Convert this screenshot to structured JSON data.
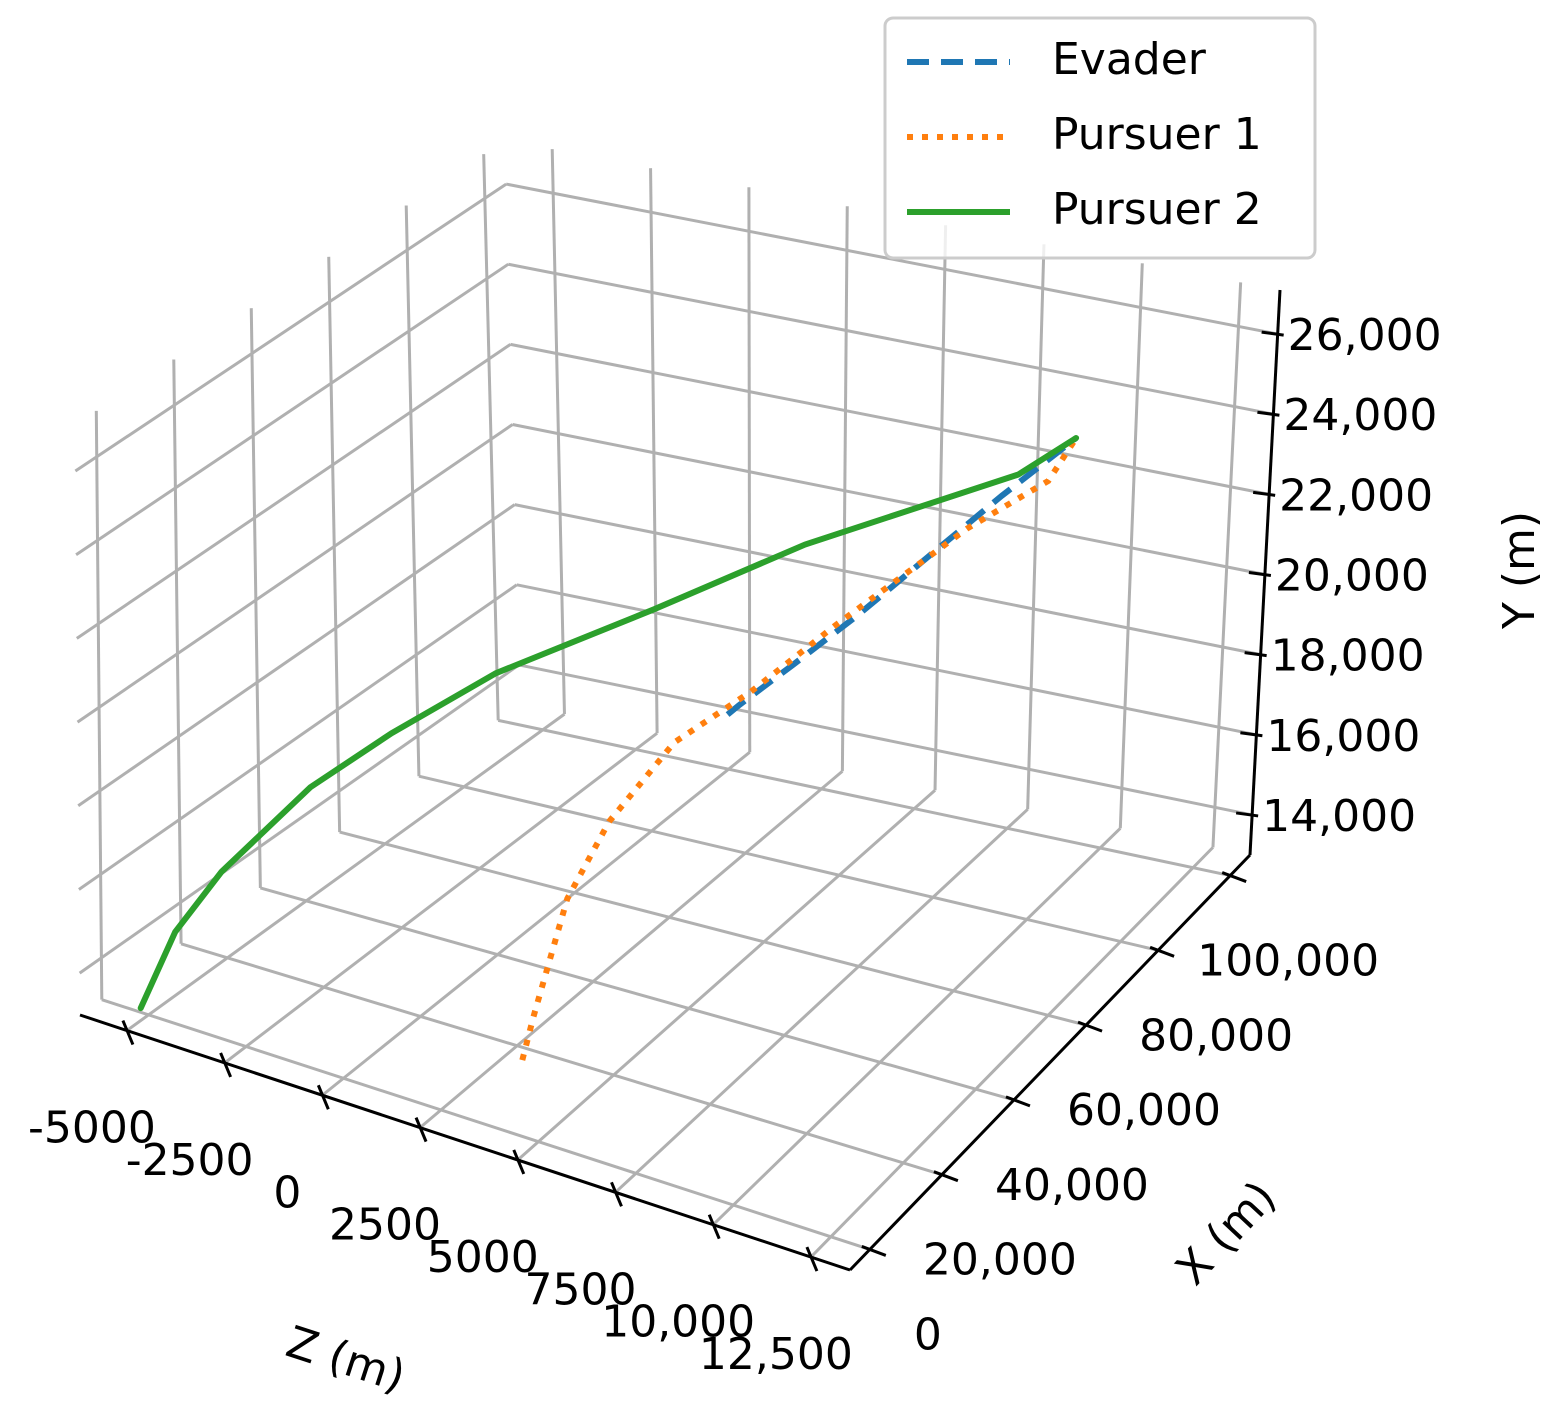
{
  "chart_data": {
    "type": "line3d",
    "xlabel": "X (m)",
    "ylabel": "Y (m)",
    "zlabel": "Z (m)",
    "xlim": [
      -5500,
      105500
    ],
    "ylim": [
      13000,
      27100
    ],
    "zlim": [
      -6200,
      13500
    ],
    "xticks": [
      0,
      {
        "value": 20000,
        "label": "20,000"
      },
      {
        "value": 40000,
        "label": "40,000"
      },
      {
        "value": 60000,
        "label": "60,000"
      },
      {
        "value": 80000,
        "label": "80,000"
      },
      {
        "value": 100000,
        "label": "100,000"
      }
    ],
    "yticks": [
      {
        "value": 14000,
        "label": "14,000"
      },
      {
        "value": 16000,
        "label": "16,000"
      },
      {
        "value": 18000,
        "label": "18,000"
      },
      {
        "value": 20000,
        "label": "20,000"
      },
      {
        "value": 22000,
        "label": "22,000"
      },
      {
        "value": 24000,
        "label": "24,000"
      },
      {
        "value": 26000,
        "label": "26,000"
      }
    ],
    "zticks": [
      -5000,
      -2500,
      0,
      2500,
      5000,
      7500,
      {
        "value": 10000,
        "label": "10,000"
      },
      {
        "value": 12500,
        "label": "12,500"
      }
    ],
    "grid": true,
    "legend_loc": "upper right",
    "series": [
      {
        "name": "Evader",
        "color": "#1f77b4",
        "linestyle": "dashed",
        "x": [
          50000,
          52000,
          60000,
          70000,
          80000,
          90000,
          100000
        ],
        "y": [
          19300,
          19400,
          19900,
          20500,
          21300,
          22200,
          23000
        ],
        "z": [
          5000,
          5100,
          5700,
          6400,
          7200,
          8100,
          9000
        ]
      },
      {
        "name": "Pursuer 1",
        "color": "#ff7f0e",
        "linestyle": "dotted",
        "x": [
          0,
          2000,
          10000,
          20000,
          35000,
          50000,
          70000,
          85000,
          95000,
          100000
        ],
        "y": [
          14800,
          15700,
          17900,
          19000,
          19800,
          20000,
          20100,
          21700,
          22300,
          23000
        ],
        "z": [
          4600,
          4700,
          4800,
          4900,
          5100,
          5600,
          5800,
          7700,
          8800,
          9000
        ]
      },
      {
        "name": "Pursuer 2",
        "color": "#2ca02c",
        "linestyle": "solid",
        "x": [
          0,
          3000,
          7000,
          15000,
          25000,
          40000,
          55000,
          70000,
          90000,
          100000
        ],
        "y": [
          13100,
          14900,
          16300,
          18200,
          19100,
          19800,
          20900,
          21900,
          22800,
          23000
        ],
        "z": [
          -5200,
          -4600,
          -3800,
          -2300,
          -1200,
          0,
          2600,
          5000,
          8500,
          9000
        ]
      }
    ]
  }
}
